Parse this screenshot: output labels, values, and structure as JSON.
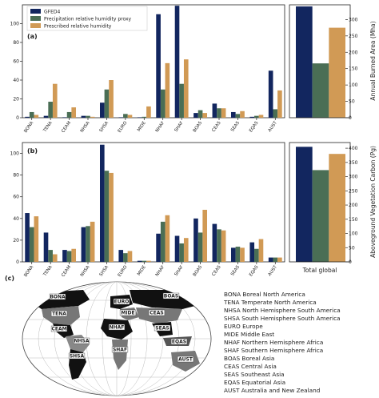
{
  "colors": {
    "gfed4": "#12265f",
    "precip_proxy": "#4a6e55",
    "prescribed": "#d19a55"
  },
  "chart_data": [
    {
      "id": "a",
      "type": "bar",
      "panel_label": "(a)",
      "categories": [
        "BONA",
        "TENA",
        "CEAM",
        "NHSA",
        "SHSA",
        "EURO",
        "MIDE",
        "NHAF",
        "SHAF",
        "BOAS",
        "CEAS",
        "SEAS",
        "EQAS",
        "AUST"
      ],
      "series": [
        {
          "name": "GFED4",
          "values": [
            1,
            2,
            0.5,
            2,
            16,
            0.5,
            0.5,
            110,
            119,
            5,
            15,
            6,
            1,
            50
          ]
        },
        {
          "name": "Precipitation relative humidity proxy",
          "values": [
            6,
            17,
            6,
            2,
            30,
            4,
            1,
            30,
            36,
            8,
            10,
            4,
            2,
            9
          ]
        },
        {
          "name": "Prescribed relative humidity",
          "values": [
            3,
            36,
            11,
            1,
            40,
            3,
            12,
            58,
            62,
            5,
            10,
            7,
            3,
            29
          ]
        }
      ],
      "ylim": [
        0,
        120
      ],
      "yticks": [
        0,
        20,
        40,
        60,
        80,
        100
      ],
      "legend_position": "top-left"
    },
    {
      "id": "a_total",
      "type": "bar",
      "categories": [
        "Total global"
      ],
      "series": [
        {
          "name": "GFED4",
          "values": [
            340
          ]
        },
        {
          "name": "Precipitation relative humidity proxy",
          "values": [
            166
          ]
        },
        {
          "name": "Prescribed relative humidity",
          "values": [
            275
          ]
        }
      ],
      "ylim": [
        0,
        345
      ],
      "yticks": [
        0,
        50,
        100,
        150,
        200,
        250,
        300
      ],
      "ylabel": "Annual Burned Area (Mha)"
    },
    {
      "id": "b",
      "type": "bar",
      "panel_label": "(b)",
      "categories": [
        "BONA",
        "TENA",
        "CEAM",
        "NHSA",
        "SHSA",
        "EURO",
        "MIDE",
        "NHAF",
        "SHAF",
        "BOAS",
        "CEAS",
        "SEAS",
        "EQAS",
        "AUST"
      ],
      "series": [
        {
          "name": "GFED4",
          "values": [
            45,
            27,
            11,
            32,
            108,
            11,
            1,
            26,
            24,
            40,
            35,
            13,
            18,
            4
          ]
        },
        {
          "name": "Precipitation relative humidity proxy",
          "values": [
            32,
            11,
            10,
            33,
            84,
            8,
            1,
            37,
            17,
            27,
            30,
            14,
            12,
            4
          ]
        },
        {
          "name": "Prescribed relative humidity",
          "values": [
            42,
            7,
            12,
            37,
            82,
            10,
            1,
            43,
            22,
            48,
            29,
            13,
            21,
            4
          ]
        }
      ],
      "ylim": [
        0,
        110
      ],
      "yticks": [
        0,
        20,
        40,
        60,
        80,
        100
      ]
    },
    {
      "id": "b_total",
      "type": "bar",
      "categories": [
        "Total global"
      ],
      "series": [
        {
          "name": "GFED4",
          "values": [
            405
          ]
        },
        {
          "name": "Precipitation relative humidity proxy",
          "values": [
            323
          ]
        },
        {
          "name": "Prescribed relative humidity",
          "values": [
            380
          ]
        }
      ],
      "ylim": [
        0,
        420
      ],
      "yticks": [
        0,
        50,
        100,
        150,
        200,
        250,
        300,
        350,
        400
      ],
      "ylabel": "Aboveground Vegetation Carbon (Pg)",
      "xlabel": "Total global"
    }
  ],
  "legend": [
    "GFED4",
    "Precipitation relative humidity proxy",
    "Prescribed relative humidity"
  ],
  "map": {
    "panel_label": "(c)",
    "labels": [
      "BONA",
      "TENA",
      "CEAM",
      "NHSA",
      "SHSA",
      "EURO",
      "MIDE",
      "NHAF",
      "SHAF",
      "BOAS",
      "CEAS",
      "SEAS",
      "EQAS",
      "AUST"
    ],
    "legend": [
      "BONA Boreal North America",
      "TENA Temperate North America",
      "NHSA North Hemisphere South America",
      "SHSA South Hemisphere South America",
      "EURO Europe",
      "MIDE Middle East",
      "NHAF Northern Hemisphere Africa",
      "SHAF Southern Hemisphere Africa",
      "BOAS Boreal Asia",
      "CEAS Central Asia",
      "SEAS Southeast Asia",
      "EQAS Equatorial Asia",
      "AUST Australia and New Zealand"
    ]
  }
}
